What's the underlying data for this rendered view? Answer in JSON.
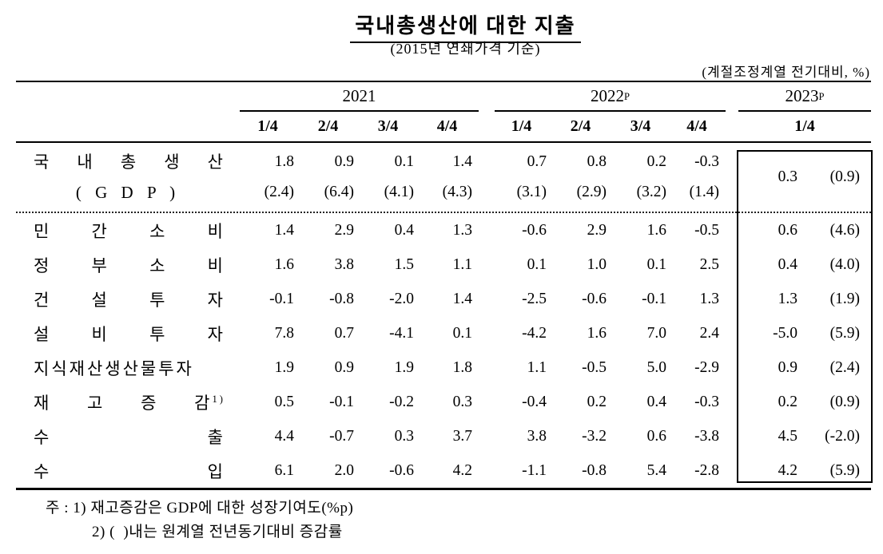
{
  "page": {
    "title": "국내총생산에 대한 지출",
    "subtitle": "(2015년 연쇄가격 기준)",
    "unit_note": "(계절조정계열 전기대비, %)"
  },
  "table": {
    "year_groups": [
      {
        "label": "2021",
        "sup": ""
      },
      {
        "label": "2022",
        "sup": "P"
      },
      {
        "label": "2023",
        "sup": "P"
      }
    ],
    "quarters": [
      "1/4",
      "2/4",
      "3/4",
      "4/4",
      "1/4",
      "2/4",
      "3/4",
      "4/4",
      "1/4"
    ],
    "gdp_row": {
      "label_line1": "국 내 총 생 산",
      "label_line2": "( G D P )",
      "values": [
        "1.8",
        "0.9",
        "0.1",
        "1.4",
        "0.7",
        "0.8",
        "0.2",
        "-0.3"
      ],
      "parens": [
        "(2.4)",
        "(6.4)",
        "(4.1)",
        "(4.3)",
        "(3.1)",
        "(2.9)",
        "(3.2)",
        "(1.4)"
      ],
      "y2023_value": "0.3",
      "y2023_paren": "(0.9)"
    },
    "rows": [
      {
        "label": "민 간 소 비",
        "sup": "",
        "values": [
          "1.4",
          "2.9",
          "0.4",
          "1.3",
          "-0.6",
          "2.9",
          "1.6",
          "-0.5"
        ],
        "y2023_value": "0.6",
        "y2023_paren": "(4.6)"
      },
      {
        "label": "정 부 소 비",
        "sup": "",
        "values": [
          "1.6",
          "3.8",
          "1.5",
          "1.1",
          "0.1",
          "1.0",
          "0.1",
          "2.5"
        ],
        "y2023_value": "0.4",
        "y2023_paren": "(4.0)"
      },
      {
        "label": "건 설 투 자",
        "sup": "",
        "values": [
          "-0.1",
          "-0.8",
          "-2.0",
          "1.4",
          "-2.5",
          "-0.6",
          "-0.1",
          "1.3"
        ],
        "y2023_value": "1.3",
        "y2023_paren": "(1.9)"
      },
      {
        "label": "설 비 투 자",
        "sup": "",
        "values": [
          "7.8",
          "0.7",
          "-4.1",
          "0.1",
          "-4.2",
          "1.6",
          "7.0",
          "2.4"
        ],
        "y2023_value": "-5.0",
        "y2023_paren": "(5.9)"
      },
      {
        "label": "지식재산생산물투자",
        "sup": "",
        "values": [
          "1.9",
          "0.9",
          "1.9",
          "1.8",
          "1.1",
          "-0.5",
          "5.0",
          "-2.9"
        ],
        "y2023_value": "0.9",
        "y2023_paren": "(2.4)"
      },
      {
        "label": "재 고 증 감",
        "sup": "1)",
        "values": [
          "0.5",
          "-0.1",
          "-0.2",
          "0.3",
          "-0.4",
          "0.2",
          "0.4",
          "-0.3"
        ],
        "y2023_value": "0.2",
        "y2023_paren": "(0.9)"
      },
      {
        "label": "수 출",
        "sup": "",
        "values": [
          "4.4",
          "-0.7",
          "0.3",
          "3.7",
          "3.8",
          "-3.2",
          "0.6",
          "-3.8"
        ],
        "y2023_value": "4.5",
        "y2023_paren": "(-2.0)"
      },
      {
        "label": "수 입",
        "sup": "",
        "values": [
          "6.1",
          "2.0",
          "-0.6",
          "4.2",
          "-1.1",
          "-0.8",
          "5.4",
          "-2.8"
        ],
        "y2023_value": "4.2",
        "y2023_paren": "(5.9)"
      }
    ]
  },
  "footnotes": {
    "line1": "주 : 1) 재고증감은 GDP에 대한 성장기여도(%p)",
    "line2": "2) (  )내는 원계열 전년동기대비 증감률"
  }
}
